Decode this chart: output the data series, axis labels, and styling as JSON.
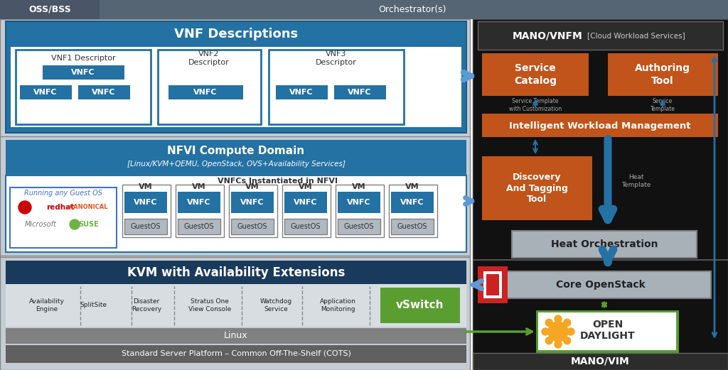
{
  "bg_color": "#ffffff",
  "header_bg": "#566573",
  "ossbss_bg": "#4a5568",
  "medium_blue": "#2471a3",
  "dark_blue": "#1a3a5c",
  "light_bg": "#eaf0f8",
  "white": "#ffffff",
  "orange": "#c0541a",
  "green": "#5a9e32",
  "gray_panel": "#c8cdd2",
  "gray_section": "#b0b8c1",
  "light_gray_box": "#c8cdd2",
  "gray_bar": "#8a9099",
  "dark_gray_bar": "#6a7178",
  "kvm_blue": "#1a3a5c",
  "teal_arrow": "#5b9bd5",
  "blue_arrow": "#2471a3",
  "right_bg": "#1a1a1a",
  "right_section_bg": "#111111",
  "mano_header_bg": "#2c2c2c",
  "heat_gray": "#a8b0b8",
  "core_gray": "#a8b0b8",
  "vnf_desc_title": "VNF Descriptions",
  "nfvi_title": "NFVI Compute Domain",
  "nfvi_subtitle": "[Linux/KVM+QEMU, OpenStack, OVS+Availability Services]",
  "kvm_title": "KVM with Availability Extensions",
  "mano_title": "MANO/VNFM",
  "mano_subtitle": " [Cloud Workload Services]",
  "mano_vim": "MANO/VIM",
  "heat_orch": "Heat Orchestration",
  "core_os": "Core OpenStack",
  "iwm": "Intelligent Workload Management",
  "svc_catalog": "Service\nCatalog",
  "auth_tool": "Authoring\nTool",
  "discovery": "Discovery\nAnd Tagging\nTool",
  "heat_template": "Heat\nTemplate",
  "linux_label": "Linux",
  "cots_label": "Standard Server Platform – Common Off-The-Shelf (COTS)",
  "oss_bss": "OSS/BSS",
  "orchestrator": "Orchestrator(s)",
  "svc_tmpl_cust": "Service Template\nwith Customization",
  "svc_tmpl": "Service\nTemplate",
  "vnfcs_label": "VNFCs Instantiated in NFVI",
  "guest_os_label": "Running any Guest OS"
}
